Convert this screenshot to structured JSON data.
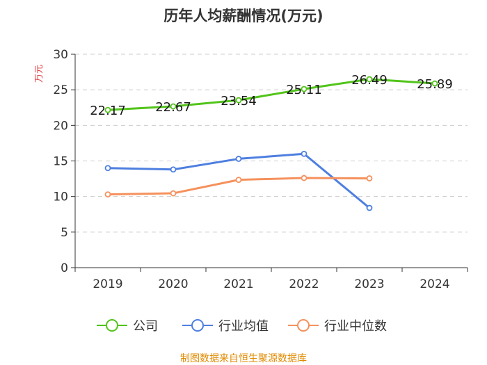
{
  "chart_data": {
    "type": "line",
    "title": "历年人均薪酬情况(万元)",
    "ylabel": "万元",
    "xlabel": "",
    "ylim": [
      0,
      30
    ],
    "yticks": [
      0,
      5,
      10,
      15,
      20,
      25,
      30
    ],
    "categories": [
      "2019",
      "2020",
      "2021",
      "2022",
      "2023",
      "2024"
    ],
    "grid": true,
    "legend_position": "bottom",
    "series": [
      {
        "name": "公司",
        "color": "#52c41a",
        "values": [
          22.17,
          22.67,
          23.54,
          25.11,
          26.49,
          25.89
        ],
        "labels": [
          "22.17",
          "22.67",
          "23.54",
          "25.11",
          "26.49",
          "25.89"
        ]
      },
      {
        "name": "行业均值",
        "color": "#4e7fe0",
        "values": [
          14.0,
          13.8,
          15.3,
          16.0,
          8.4,
          null
        ]
      },
      {
        "name": "行业中位数",
        "color": "#f5915d",
        "values": [
          10.3,
          10.45,
          12.35,
          12.6,
          12.55,
          null
        ]
      }
    ],
    "source": "制图数据来自恒生聚源数据库"
  }
}
